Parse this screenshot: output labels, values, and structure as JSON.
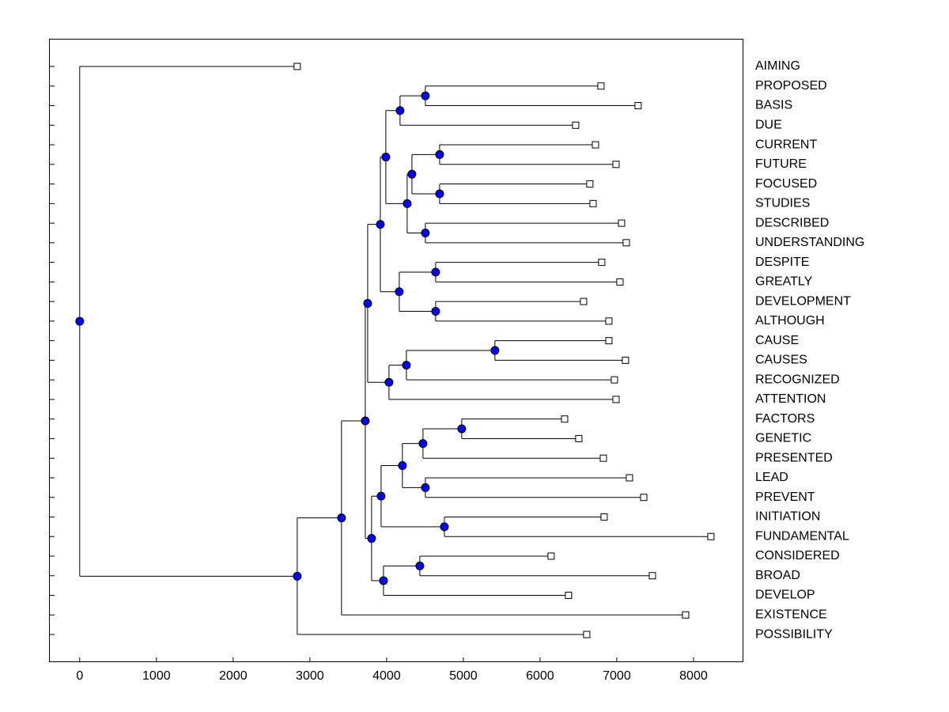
{
  "chart_data": {
    "type": "dendrogram",
    "xlim": [
      -400,
      8650
    ],
    "xticks": [
      0,
      1000,
      2000,
      3000,
      4000,
      5000,
      6000,
      7000,
      8000
    ],
    "node_color": "#0000ff",
    "tree": {
      "value": 0,
      "children": [
        {
          "label": "AIMING",
          "value": 2835
        },
        {
          "value": 2835,
          "children": [
            {
              "value": 3412,
              "children": [
                {
                  "value": 3722,
                  "children": [
                    {
                      "value": 3753,
                      "children": [
                        {
                          "value": 3918,
                          "children": [
                            {
                              "value": 3990,
                              "children": [
                                {
                                  "value": 4175,
                                  "children": [
                                    {
                                      "value": 4505,
                                      "children": [
                                        {
                                          "label": "PROPOSED",
                                          "value": 6794
                                        },
                                        {
                                          "label": "BASIS",
                                          "value": 7278
                                        }
                                      ]
                                    },
                                    {
                                      "label": "DUE",
                                      "value": 6464
                                    }
                                  ]
                                },
                                {
                                  "value": 4268,
                                  "children": [
                                    {
                                      "value": 4330,
                                      "children": [
                                        {
                                          "value": 4691,
                                          "children": [
                                            {
                                              "label": "CURRENT",
                                              "value": 6722
                                            },
                                            {
                                              "label": "FUTURE",
                                              "value": 6990
                                            }
                                          ]
                                        },
                                        {
                                          "value": 4691,
                                          "children": [
                                            {
                                              "label": "FOCUSED",
                                              "value": 6649
                                            },
                                            {
                                              "label": "STUDIES",
                                              "value": 6691
                                            }
                                          ]
                                        }
                                      ]
                                    },
                                    {
                                      "value": 4505,
                                      "children": [
                                        {
                                          "label": "DESCRIBED",
                                          "value": 7062
                                        },
                                        {
                                          "label": "UNDERSTANDING",
                                          "value": 7124
                                        }
                                      ]
                                    }
                                  ]
                                }
                              ]
                            },
                            {
                              "value": 4165,
                              "children": [
                                {
                                  "value": 4639,
                                  "children": [
                                    {
                                      "label": "DESPITE",
                                      "value": 6804
                                    },
                                    {
                                      "label": "GREATLY",
                                      "value": 7041
                                    }
                                  ]
                                },
                                {
                                  "value": 4639,
                                  "children": [
                                    {
                                      "label": "DEVELOPMENT",
                                      "value": 6567
                                    },
                                    {
                                      "label": "ALTHOUGH",
                                      "value": 6897
                                    }
                                  ]
                                }
                              ]
                            }
                          ]
                        },
                        {
                          "value": 4031,
                          "children": [
                            {
                              "value": 4258,
                              "children": [
                                {
                                  "value": 5412,
                                  "children": [
                                    {
                                      "label": "CAUSE",
                                      "value": 6897
                                    },
                                    {
                                      "label": "CAUSES",
                                      "value": 7113
                                    }
                                  ]
                                },
                                {
                                  "label": "RECOGNIZED",
                                  "value": 6969
                                }
                              ]
                            },
                            {
                              "label": "ATTENTION",
                              "value": 6990
                            }
                          ]
                        }
                      ]
                    },
                    {
                      "value": 3804,
                      "children": [
                        {
                          "value": 3928,
                          "children": [
                            {
                              "value": 4206,
                              "children": [
                                {
                                  "value": 4474,
                                  "children": [
                                    {
                                      "value": 4979,
                                      "children": [
                                        {
                                          "label": "FACTORS",
                                          "value": 6320
                                        },
                                        {
                                          "label": "GENETIC",
                                          "value": 6505
                                        }
                                      ]
                                    },
                                    {
                                      "label": "PRESENTED",
                                      "value": 6825
                                    }
                                  ]
                                },
                                {
                                  "value": 4505,
                                  "children": [
                                    {
                                      "label": "LEAD",
                                      "value": 7165
                                    },
                                    {
                                      "label": "PREVENT",
                                      "value": 7351
                                    }
                                  ]
                                }
                              ]
                            },
                            {
                              "value": 4753,
                              "children": [
                                {
                                  "label": "INITIATION",
                                  "value": 6835
                                },
                                {
                                  "label": "FUNDAMENTAL",
                                  "value": 8227
                                }
                              ]
                            }
                          ]
                        },
                        {
                          "value": 3959,
                          "children": [
                            {
                              "value": 4433,
                              "children": [
                                {
                                  "label": "CONSIDERED",
                                  "value": 6144
                                },
                                {
                                  "label": "BROAD",
                                  "value": 7464
                                }
                              ]
                            },
                            {
                              "label": "DEVELOP",
                              "value": 6371
                            }
                          ]
                        }
                      ]
                    }
                  ]
                },
                {
                  "label": "EXISTENCE",
                  "value": 7897
                }
              ]
            },
            {
              "label": "POSSIBILITY",
              "value": 6608
            }
          ]
        }
      ]
    }
  }
}
